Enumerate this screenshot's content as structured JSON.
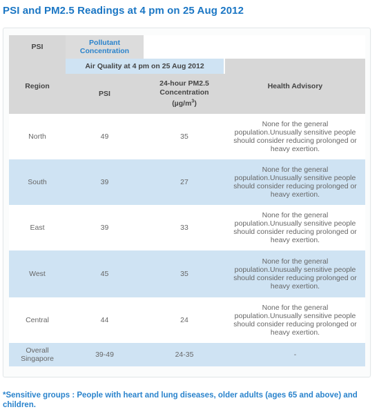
{
  "page": {
    "title": "PSI and PM2.5 Readings at 4 pm on 25 Aug 2012"
  },
  "legend": {
    "psi": "PSI",
    "pollutant_line1": "Pollutant",
    "pollutant_line2": "Concentration"
  },
  "header": {
    "air_quality": "Air Quality at 4 pm on 25 Aug 2012",
    "region": "Region",
    "psi": "PSI",
    "pm25_line1": "24-hour PM2.5",
    "pm25_line2": "Concentration",
    "pm25_unit_prefix": "(µg/m",
    "pm25_unit_sup": "3",
    "pm25_unit_suffix": ")",
    "health_advisory": "Health Advisory"
  },
  "rows": [
    {
      "region": "North",
      "psi": "49",
      "pm25": "35",
      "advisory": "None for the general population.Unusually sensitive people should consider reducing prolonged or heavy exertion."
    },
    {
      "region": "South",
      "psi": "39",
      "pm25": "27",
      "advisory": "None for the general population.Unusually sensitive people should consider reducing prolonged or heavy exertion."
    },
    {
      "region": "East",
      "psi": "39",
      "pm25": "33",
      "advisory": "None for the general population.Unusually sensitive people should consider reducing prolonged or heavy exertion."
    },
    {
      "region": "West",
      "psi": "45",
      "pm25": "35",
      "advisory": "None for the general population.Unusually sensitive people should consider reducing prolonged or heavy exertion."
    },
    {
      "region": "Central",
      "psi": "44",
      "pm25": "24",
      "advisory": "None for the general population.Unusually sensitive people should consider reducing prolonged or heavy exertion."
    }
  ],
  "overall": {
    "region_line1": "Overall",
    "region_line2": "Singapore",
    "psi": "39-49",
    "pm25": "24-35",
    "advisory": "-"
  },
  "footnote": "*Sensitive groups : People with heart and lung diseases, older adults (ages 65 and above) and children.",
  "colors": {
    "title": "#1a76c4",
    "header_gray": "#d7d7d7",
    "row_blue": "#cfe3f3",
    "footnote": "#2a83cc"
  }
}
